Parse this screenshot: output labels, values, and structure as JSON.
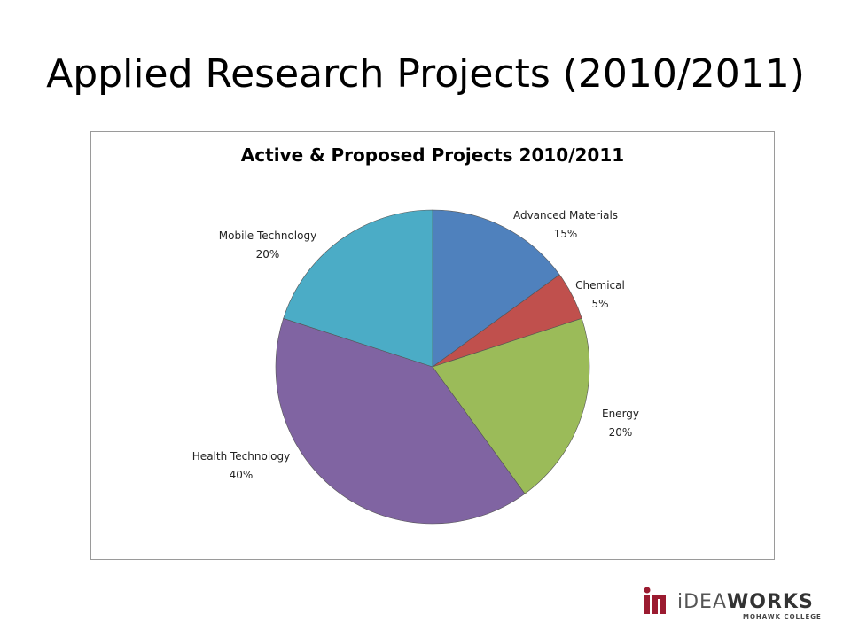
{
  "slide": {
    "title": "Applied Research Projects (2010/2011)"
  },
  "chart_data": {
    "type": "pie",
    "title": "Active & Proposed Projects 2010/2011",
    "categories": [
      "Advanced Materials",
      "Chemical",
      "Energy",
      "Health Technology",
      "Mobile Technology"
    ],
    "values": [
      15,
      5,
      20,
      40,
      20
    ],
    "labels": [
      "15%",
      "5%",
      "20%",
      "40%",
      "20%"
    ],
    "colors": [
      "#4F81BD",
      "#C0504D",
      "#9BBB59",
      "#8064A2",
      "#4BACC6"
    ],
    "legend": "none"
  },
  "logo": {
    "brand_light": "iDEA",
    "brand_bold": "WORKS",
    "sub": "MOHAWK COLLEGE",
    "color": "#9B1B30"
  }
}
